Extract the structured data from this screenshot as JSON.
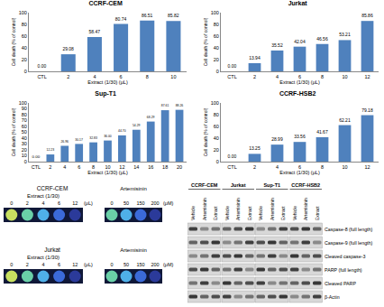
{
  "chart_data": [
    {
      "type": "bar",
      "title": "CCRF-CEM",
      "categories": [
        "CTL",
        "2",
        "4",
        "6",
        "8",
        "10"
      ],
      "values": [
        0.0,
        29.08,
        58.47,
        80.74,
        86.51,
        85.82
      ],
      "value_labels": [
        "0.00",
        "29.08",
        "58.47",
        "80.74",
        "86.51",
        "85.82"
      ],
      "color": "#4f81bd",
      "xlabel": "Extract (1/30) (μL)",
      "ylabel": "Cell death (% of control)",
      "ylim": [
        0,
        100
      ],
      "yticks": [
        0,
        20,
        40,
        60,
        80,
        100
      ],
      "data_labels": true
    },
    {
      "type": "bar",
      "title": "Jurkat",
      "categories": [
        "CTL",
        "2",
        "4",
        "6",
        "8",
        "10",
        "12"
      ],
      "values": [
        0.0,
        13.94,
        35.52,
        42.04,
        46.56,
        53.21,
        85.86
      ],
      "value_labels": [
        "0.00",
        "13.94",
        "35.52",
        "42.04",
        "46.56",
        "53.21",
        "85.86"
      ],
      "color": "#4f81bd",
      "xlabel": "Extract (1/30) (μL)",
      "ylabel": "Cell death (% of control)",
      "ylim": [
        0,
        100
      ],
      "yticks": [
        0,
        20,
        40,
        60,
        80,
        100
      ],
      "data_labels": true
    },
    {
      "type": "bar",
      "title": "Sup-T1",
      "categories": [
        "CTL",
        "2",
        "4",
        "6",
        "8",
        "10",
        "12",
        "14",
        "16",
        "18",
        "20"
      ],
      "values": [
        0.0,
        12.23,
        26.96,
        30.17,
        32.83,
        36.0,
        44.7,
        54.29,
        68.29,
        87.61,
        88.26
      ],
      "value_labels": [
        "0.00",
        "12.23",
        "26.96",
        "30.17",
        "32.83",
        "36.00",
        "44.70",
        "54.29",
        "68.29",
        "87.61",
        "88.26"
      ],
      "color": "#4f81bd",
      "xlabel": "Extract (1/30) (μL)",
      "ylabel": "Cell death (% of control)",
      "ylim": [
        0,
        100
      ],
      "yticks": [
        0,
        10,
        20,
        30,
        40,
        50,
        60,
        70,
        80,
        90,
        100
      ],
      "data_labels": true
    },
    {
      "type": "bar",
      "title": "CCRF-HSB2",
      "categories": [
        "CTL",
        "2",
        "4",
        "6",
        "8",
        "10",
        "12"
      ],
      "values": [
        0.0,
        13.25,
        28.99,
        33.56,
        41.67,
        62.21,
        79.18
      ],
      "value_labels": [
        "0.00",
        "13.25",
        "28.99",
        "33.56",
        "41.67",
        "62.21",
        "79.18"
      ],
      "color": "#4f81bd",
      "xlabel": "Extract (1/30) (μL)",
      "ylabel": "Cell death (% of control)",
      "ylim": [
        0,
        100
      ],
      "yticks": [
        0,
        20,
        40,
        60,
        80,
        100
      ],
      "data_labels": true
    }
  ],
  "plates": [
    {
      "cell_line": "CCRF-CEM",
      "panels": [
        {
          "label": "Extract (1/30)",
          "doses": [
            "0",
            "2",
            "4",
            "6",
            "12"
          ],
          "unit": "(μL)"
        },
        {
          "label": "Artemisinin",
          "doses": [
            "0",
            "50",
            "150",
            "200"
          ],
          "unit": "(μM)"
        }
      ]
    },
    {
      "cell_line": "Jurkat",
      "panels": [
        {
          "label": "Extract (1/30)",
          "doses": [
            "0",
            "2",
            "4",
            "6",
            "12"
          ],
          "unit": "(μL)"
        },
        {
          "label": "Artemisinin",
          "doses": [
            "0",
            "50",
            "150",
            "200"
          ],
          "unit": "(μM)"
        }
      ]
    }
  ],
  "blot": {
    "groups": [
      "CCRF-CEM",
      "Jurkat",
      "Sup-T1",
      "CCRF-HSB2"
    ],
    "lanes": [
      "Vehicle",
      "Artemisinin",
      "Extract"
    ],
    "rows": [
      "Caspase-8 (full length)",
      "Caspase-9 (full length)",
      "Cleaved caspase-3",
      "PARP (full length)",
      "Cleaved PARP",
      "β-Actin"
    ]
  }
}
